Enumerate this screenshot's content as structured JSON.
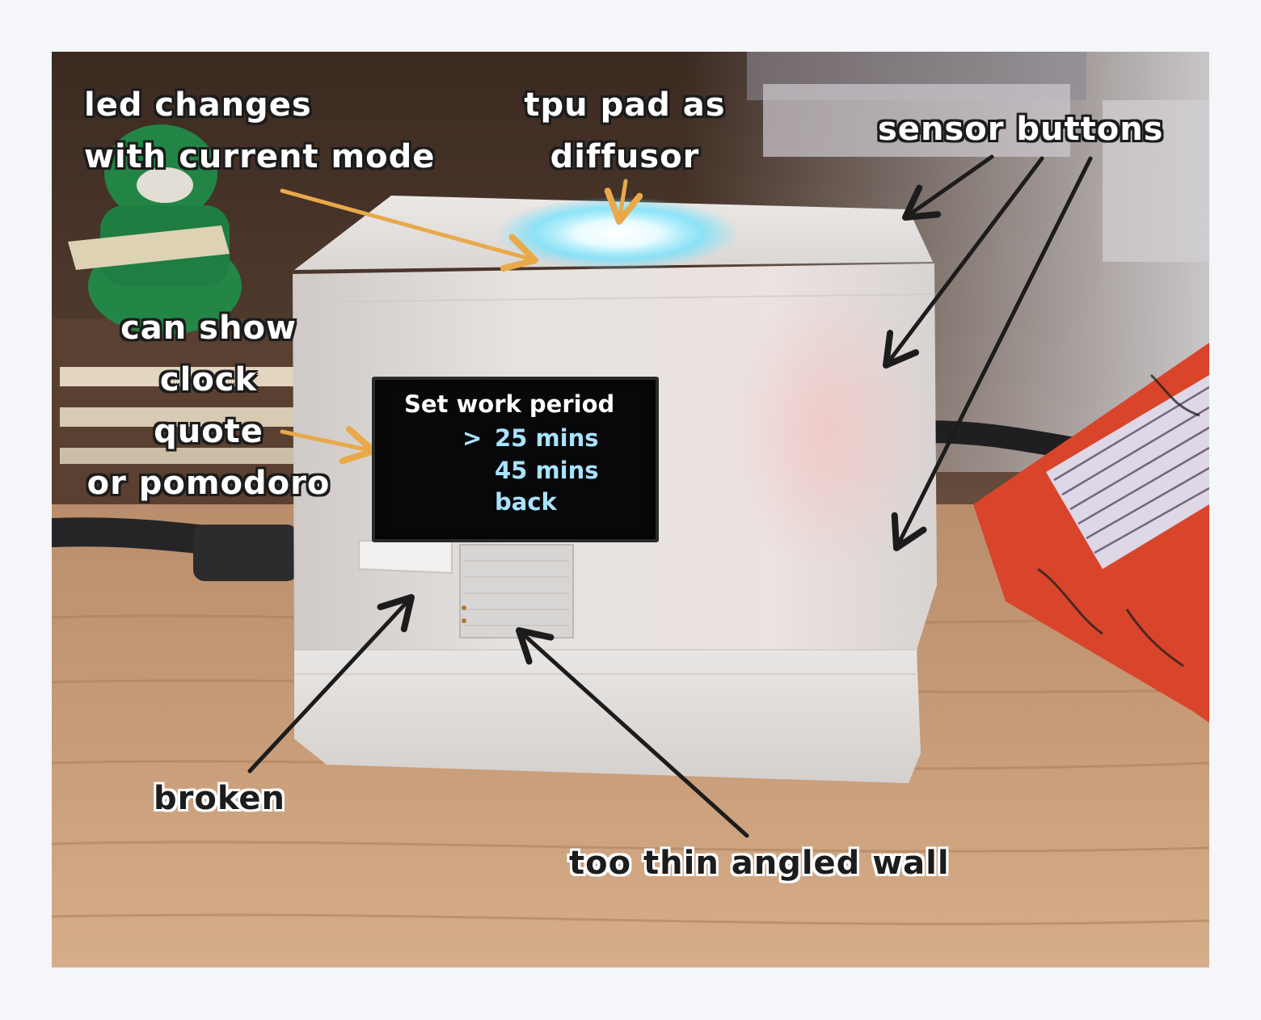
{
  "screen": {
    "header": "Set work period",
    "cursor": ">",
    "options": [
      "25 mins",
      "45 mins",
      "back"
    ],
    "selected_index": 0
  },
  "annotations": {
    "led": [
      "led changes",
      "with current mode"
    ],
    "diffusor": [
      "tpu pad as",
      "diffusor"
    ],
    "sensor": "sensor buttons",
    "display": [
      "can show",
      "clock",
      "quote",
      "or pomodoro"
    ],
    "broken": "broken",
    "wall": "too thin angled wall"
  },
  "colors": {
    "background": "#f4f6f9",
    "arrow_orange": "#e9a94a",
    "arrow_dark": "#1c1c1c",
    "case_white": "#e4e1df",
    "led_cyan": "#6fe3ff",
    "oled_text": "#ffffff",
    "oled_option": "#a8e3ff",
    "book_red": "#d9452b"
  }
}
